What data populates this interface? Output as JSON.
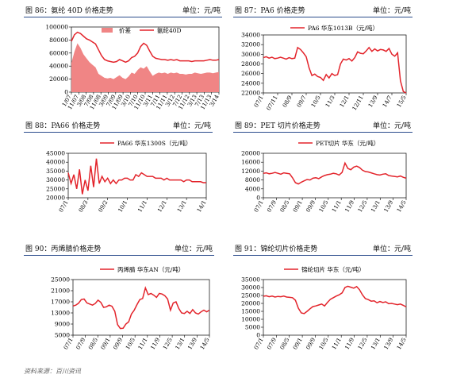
{
  "source": "资料来源：百川资讯",
  "colors": {
    "line": "#e3242b",
    "area": "#f08585",
    "header_rule": "#2b4c8c"
  },
  "chart_data": [
    {
      "id": "c86",
      "type": "line",
      "title": "图 86：氨纶 40D 价格走势",
      "unit": "单位：元/吨",
      "yticks": [
        0,
        20000,
        40000,
        60000,
        80000,
        100000
      ],
      "ylim": [
        0,
        100000
      ],
      "xticks": [
        "1/07",
        "11/07",
        "3/08",
        "7/08",
        "11/08",
        "3/09",
        "7/09",
        "11/09",
        "3/10",
        "7/10",
        "11/10",
        "3/11",
        "7/11",
        "11/11",
        "3/12",
        "7/12",
        "11/12",
        "3/13",
        "7/13",
        "11/13",
        "3/14"
      ],
      "series": [
        {
          "name": "价差",
          "kind": "area",
          "values": [
            45000,
            62000,
            75000,
            68000,
            58000,
            52000,
            46000,
            42000,
            38000,
            28000,
            25000,
            22000,
            21000,
            22000,
            20000,
            23000,
            26000,
            22000,
            20000,
            24000,
            30000,
            28000,
            34000,
            38000,
            36000,
            40000,
            32000,
            25000,
            28000,
            30000,
            29000,
            30000,
            28000,
            30000,
            29000,
            30000,
            28000,
            28000,
            27000,
            28000,
            28000,
            30000,
            29000,
            28000,
            29000,
            30000,
            30000,
            29000,
            30000,
            31000
          ]
        },
        {
          "name": "氨纶40D",
          "kind": "line",
          "values": [
            78000,
            88000,
            92000,
            90000,
            86000,
            82000,
            80000,
            77000,
            74000,
            65000,
            56000,
            50000,
            48000,
            47000,
            46000,
            47000,
            50000,
            48000,
            46000,
            48000,
            53000,
            55000,
            60000,
            70000,
            75000,
            72000,
            63000,
            55000,
            52000,
            51000,
            50000,
            50000,
            49000,
            50000,
            49000,
            50000,
            48000,
            48000,
            48000,
            48000,
            47000,
            48000,
            48000,
            48000,
            48000,
            49000,
            50000,
            49000,
            49000,
            50000
          ]
        }
      ]
    },
    {
      "id": "c87",
      "type": "line",
      "title": "图 87：PA6 价格走势",
      "unit": "单位：元/吨",
      "yticks": [
        22000,
        24000,
        26000,
        28000,
        30000,
        32000,
        34000
      ],
      "ylim": [
        22000,
        34000
      ],
      "xticks": [
        "07/1",
        "07/11",
        "08/9",
        "09/7",
        "10/5",
        "11/3",
        "12/1",
        "12/11",
        "13/9",
        "14/7",
        "15/5"
      ],
      "series": [
        {
          "name": "PA6 华东1013B（元/吨）",
          "kind": "line",
          "values": [
            29300,
            29500,
            29200,
            29400,
            29100,
            29200,
            29400,
            29200,
            29000,
            29300,
            29100,
            29200,
            31400,
            31000,
            30300,
            29500,
            27200,
            25600,
            25900,
            25400,
            25200,
            24600,
            25800,
            25100,
            26000,
            25600,
            25800,
            28000,
            29000,
            28800,
            29100,
            28600,
            29300,
            30500,
            30200,
            30100,
            30700,
            31400,
            30600,
            31100,
            30700,
            31000,
            30900,
            30600,
            31200,
            30000,
            29600,
            30300,
            24500,
            22300,
            22000
          ]
        }
      ]
    },
    {
      "id": "c88",
      "type": "line",
      "title": "图 88：PA66 价格走势",
      "unit": "单位：元/吨",
      "yticks": [
        20000,
        25000,
        30000,
        35000,
        40000,
        45000
      ],
      "ylim": [
        20000,
        45000
      ],
      "xticks": [
        "07/1",
        "08/3",
        "09/2",
        "10/1",
        "11/1",
        "12/1",
        "13/1",
        "14/1"
      ],
      "series": [
        {
          "name": "PA66 华东1300S（元/吨）",
          "kind": "line",
          "values": [
            34000,
            28000,
            33000,
            25000,
            36000,
            22000,
            30000,
            24000,
            38000,
            26000,
            42000,
            28000,
            32000,
            29000,
            31000,
            28000,
            30000,
            28000,
            30000,
            30000,
            31000,
            31000,
            30000,
            30000,
            33000,
            32000,
            34000,
            33000,
            32000,
            32000,
            32000,
            31000,
            31000,
            31000,
            30000,
            31000,
            30000,
            30000,
            30000,
            30000,
            30000,
            29000,
            30000,
            30000,
            29000,
            29000,
            29000,
            29000,
            28500,
            28500
          ]
        }
      ]
    },
    {
      "id": "c89",
      "type": "line",
      "title": "图 89：PET 切片价格走势",
      "unit": "单位：元/吨",
      "yticks": [
        0,
        4000,
        8000,
        12000,
        16000,
        20000
      ],
      "ylim": [
        0,
        20000
      ],
      "xticks": [
        "07/1",
        "07/9",
        "08/5",
        "09/1",
        "09/9",
        "10/5",
        "11/1",
        "11/9",
        "12/5",
        "13/1",
        "13/9",
        "14/5"
      ],
      "series": [
        {
          "name": "PET切片 华东（元/吨）",
          "kind": "line",
          "values": [
            11000,
            11200,
            10800,
            11000,
            11400,
            11000,
            10600,
            11200,
            11000,
            10800,
            9000,
            6800,
            6200,
            7000,
            7600,
            8200,
            8000,
            8800,
            9000,
            8600,
            9400,
            10000,
            10400,
            10600,
            11000,
            10800,
            10200,
            11400,
            15600,
            13200,
            12600,
            13800,
            14200,
            13600,
            12400,
            11800,
            11600,
            11200,
            10800,
            10400,
            10200,
            10600,
            10800,
            10000,
            9800,
            9600,
            9400,
            9800,
            9200,
            8800
          ]
        }
      ]
    },
    {
      "id": "c90",
      "type": "line",
      "title": "图 90：丙烯腈价格走势",
      "unit": "单位：元/吨",
      "yticks": [
        5000,
        9000,
        13000,
        17000,
        21000,
        25000
      ],
      "ylim": [
        5000,
        25000
      ],
      "xticks": [
        "07/1",
        "07/9",
        "08/5",
        "09/1",
        "09/9",
        "10/5",
        "11/1",
        "11/9",
        "12/5",
        "13/1",
        "13/9",
        "14/5"
      ],
      "series": [
        {
          "name": "丙烯腈 华东AN（元/吨）",
          "kind": "line",
          "values": [
            15500,
            15800,
            16500,
            17800,
            18000,
            16600,
            16200,
            15800,
            16400,
            17600,
            16800,
            15000,
            15200,
            15800,
            15400,
            13600,
            8800,
            7400,
            7500,
            9000,
            9800,
            12600,
            14000,
            16000,
            17800,
            18200,
            22000,
            19600,
            20000,
            19400,
            18600,
            20000,
            19800,
            19200,
            18000,
            14000,
            16600,
            17000,
            14600,
            13000,
            12800,
            13600,
            12800,
            14200,
            13000,
            12600,
            13400,
            14000,
            13400,
            14000
          ]
        }
      ]
    },
    {
      "id": "c91",
      "type": "line",
      "title": "图 91：锦纶切片价格走势",
      "unit": "单位：元/吨",
      "yticks": [
        0,
        5000,
        10000,
        15000,
        20000,
        25000,
        30000,
        35000
      ],
      "ylim": [
        0,
        35000
      ],
      "xticks": [
        "07/1",
        "07/9",
        "08/5",
        "09/1",
        "09/9",
        "10/5",
        "11/1",
        "11/9",
        "12/5",
        "13/1",
        "13/9",
        "14/5"
      ],
      "series": [
        {
          "name": "锦纶切片 华东（元/吨）",
          "kind": "line",
          "values": [
            24500,
            24800,
            24200,
            24600,
            24000,
            24400,
            24200,
            24600,
            24000,
            23800,
            23600,
            22000,
            17000,
            14000,
            13600,
            15000,
            16600,
            18000,
            18400,
            19000,
            19600,
            18400,
            20600,
            22600,
            23600,
            24600,
            25400,
            26600,
            30000,
            30800,
            30200,
            29600,
            30600,
            28600,
            25400,
            23000,
            22400,
            21400,
            21600,
            20400,
            21200,
            20600,
            21000,
            19800,
            20000,
            19600,
            19200,
            19600,
            18800,
            17800
          ]
        }
      ]
    }
  ]
}
